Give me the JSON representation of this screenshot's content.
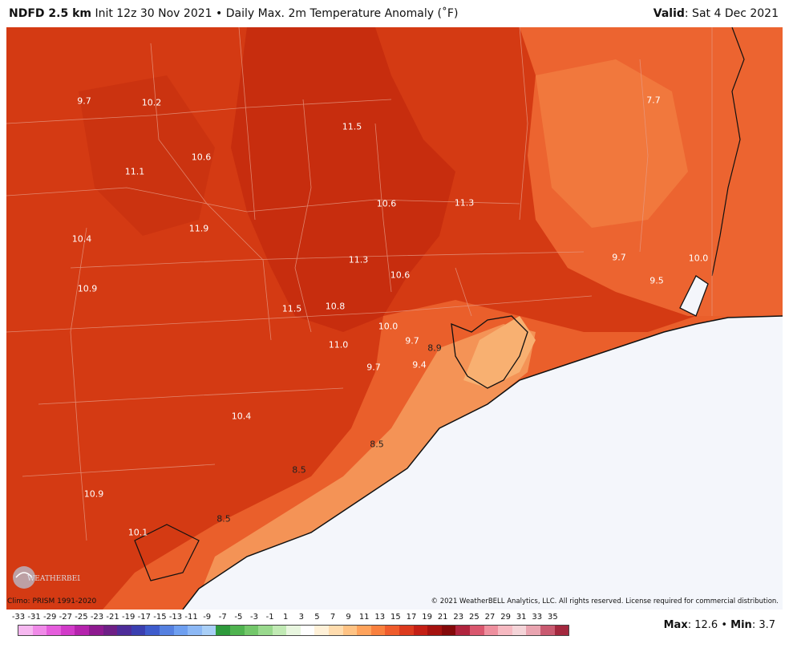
{
  "header": {
    "model": "NDFD 2.5 km",
    "init": "Init 12z 30 Nov 2021",
    "bullet": "•",
    "product": "Daily Max. 2m Temperature Anomaly (˚F)",
    "valid_label": "Valid",
    "valid_value": ": Sat 4 Dec 2021"
  },
  "map": {
    "labels": [
      {
        "text": "9.7",
        "tone": "light"
      },
      {
        "text": "10.2",
        "tone": "light"
      },
      {
        "text": "11.5",
        "tone": "light"
      },
      {
        "text": "7.7",
        "tone": "light"
      },
      {
        "text": "10.6",
        "tone": "light"
      },
      {
        "text": "11.1",
        "tone": "light"
      },
      {
        "text": "10.6",
        "tone": "light"
      },
      {
        "text": "11.3",
        "tone": "light"
      },
      {
        "text": "10.4",
        "tone": "light"
      },
      {
        "text": "11.9",
        "tone": "light"
      },
      {
        "text": "11.3",
        "tone": "light"
      },
      {
        "text": "10.6",
        "tone": "light"
      },
      {
        "text": "9.7",
        "tone": "light"
      },
      {
        "text": "10.0",
        "tone": "light"
      },
      {
        "text": "9.5",
        "tone": "light"
      },
      {
        "text": "10.9",
        "tone": "light"
      },
      {
        "text": "11.5",
        "tone": "light"
      },
      {
        "text": "10.8",
        "tone": "light"
      },
      {
        "text": "10.0",
        "tone": "light"
      },
      {
        "text": "9.7",
        "tone": "light"
      },
      {
        "text": "8.9",
        "tone": "dark"
      },
      {
        "text": "11.0",
        "tone": "light"
      },
      {
        "text": "9.7",
        "tone": "light"
      },
      {
        "text": "9.4",
        "tone": "light"
      },
      {
        "text": "10.4",
        "tone": "light"
      },
      {
        "text": "8.5",
        "tone": "dark"
      },
      {
        "text": "8.5",
        "tone": "dark"
      },
      {
        "text": "10.9",
        "tone": "light"
      },
      {
        "text": "8.5",
        "tone": "dark"
      },
      {
        "text": "10.1",
        "tone": "light"
      }
    ],
    "colors": {
      "land_dark": "#c9300e",
      "land_mid": "#d94118",
      "land_light": "#ef6a34",
      "land_pale": "#f7a668",
      "water": "#f4f6fb",
      "coast": "#111111",
      "border": "#e69a85"
    }
  },
  "logo_text": "WEATHERBELL",
  "climo": "Climo: PRISM 1991-2020",
  "copyright": "© 2021 WeatherBELL Analytics, LLC. All rights reserved. License required for commercial distribution.",
  "scale": {
    "ticks": [
      "-33",
      "-31",
      "-29",
      "-27",
      "-25",
      "-23",
      "-21",
      "-19",
      "-17",
      "-15",
      "-13",
      "-11",
      "-9",
      "-7",
      "-5",
      "-3",
      "-1",
      "1",
      "3",
      "5",
      "7",
      "9",
      "11",
      "13",
      "15",
      "17",
      "19",
      "21",
      "23",
      "25",
      "27",
      "29",
      "31",
      "33",
      "35"
    ],
    "colors": [
      "#f6b8f0",
      "#f08ae8",
      "#e55ddc",
      "#d23bc9",
      "#b523ad",
      "#8e1a90",
      "#6e1f86",
      "#4d2c99",
      "#3a3fb0",
      "#3e5ccc",
      "#5580e0",
      "#6e9ff0",
      "#8cb8f5",
      "#a9cff7",
      "#2e9a3c",
      "#4fb34f",
      "#73c76a",
      "#99d98d",
      "#c1eab4",
      "#e8f6df",
      "#ffffff",
      "#fff1d8",
      "#ffdcae",
      "#ffc384",
      "#ffa35c",
      "#f9803e",
      "#ef5c2c",
      "#dc3a1e",
      "#c41f15",
      "#a5120f",
      "#84090a",
      "#b0243e",
      "#d9576e",
      "#ee8f9e",
      "#f6b9c1",
      "#f4d4d8",
      "#e9a4b0",
      "#c95a70",
      "#a3283e"
    ]
  },
  "max_label": "Max",
  "max_value": ": 12.6",
  "bullet": "•",
  "min_label": "Min",
  "min_value": ": 3.7"
}
